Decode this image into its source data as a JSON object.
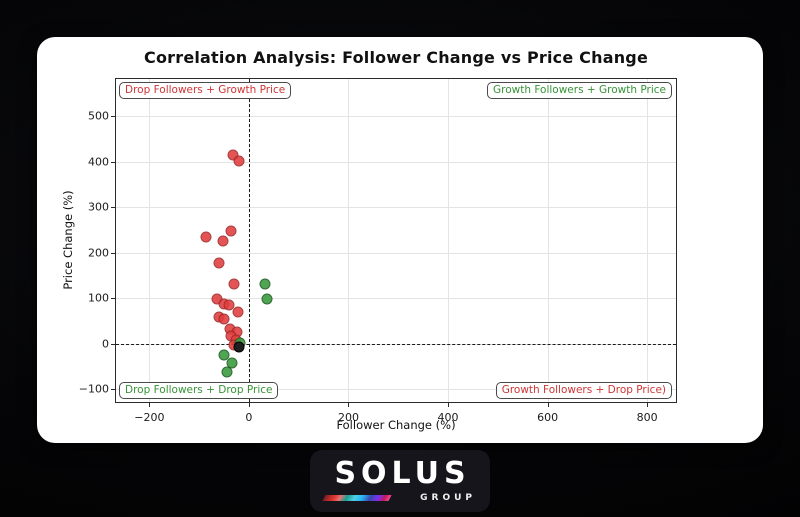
{
  "card": {
    "bg": "#ffffff"
  },
  "logo": {
    "brand": "SOLUS",
    "sub": "GROUP"
  },
  "chart_data": {
    "type": "scatter",
    "title": "Correlation Analysis: Follower Change vs Price Change",
    "xlabel": "Follower Change (%)",
    "ylabel": "Price Change (%)",
    "xlim": [
      -267,
      862
    ],
    "ylim": [
      -132,
      581
    ],
    "xticks": [
      -200,
      0,
      200,
      400,
      600,
      800
    ],
    "yticks": [
      -100,
      0,
      100,
      200,
      300,
      400,
      500
    ],
    "grid": true,
    "reference_lines": {
      "x": 0,
      "y": 0,
      "style": "dashed",
      "color": "#1c1c1c"
    },
    "series": [
      {
        "name": "drop-followers-growth-price",
        "fill": "#e23d3d",
        "edge": "#9c2727",
        "alpha": 0.88,
        "points": [
          [
            -31,
            415
          ],
          [
            -20,
            402
          ],
          [
            -36,
            248
          ],
          [
            -87,
            235
          ],
          [
            -52,
            226
          ],
          [
            -60,
            177
          ],
          [
            -30,
            131
          ],
          [
            -65,
            98
          ],
          [
            -50,
            88
          ],
          [
            -40,
            85
          ],
          [
            -21,
            69
          ],
          [
            -61,
            58
          ],
          [
            -50,
            55
          ],
          [
            -38,
            33
          ],
          [
            -23,
            27
          ],
          [
            -35,
            17
          ],
          [
            -26,
            8
          ],
          [
            -29,
            -3
          ]
        ]
      },
      {
        "name": "growth-or-drop-green",
        "fill": "#3d9c40",
        "edge": "#1d5a20",
        "alpha": 0.9,
        "points": [
          [
            32,
            132
          ],
          [
            36,
            99
          ],
          [
            -17,
            1
          ],
          [
            -50,
            -25
          ],
          [
            -34,
            -41
          ],
          [
            -45,
            -61
          ]
        ]
      },
      {
        "name": "neutral-black",
        "fill": "#1f1f1f",
        "edge": "#000000",
        "alpha": 1,
        "points": [
          [
            -20,
            -7
          ]
        ]
      }
    ],
    "quadrant_labels": [
      {
        "text": "Drop Followers + Growth Price",
        "color": "#cf3535",
        "position": "top-left"
      },
      {
        "text": "Growth Followers + Growth Price",
        "color": "#389338",
        "position": "top-right"
      },
      {
        "text": "Drop Followers + Drop Price",
        "color": "#389338",
        "position": "bottom-left"
      },
      {
        "text": "Growth Followers + Drop Price)",
        "color": "#cf3535",
        "position": "bottom-right"
      }
    ]
  }
}
